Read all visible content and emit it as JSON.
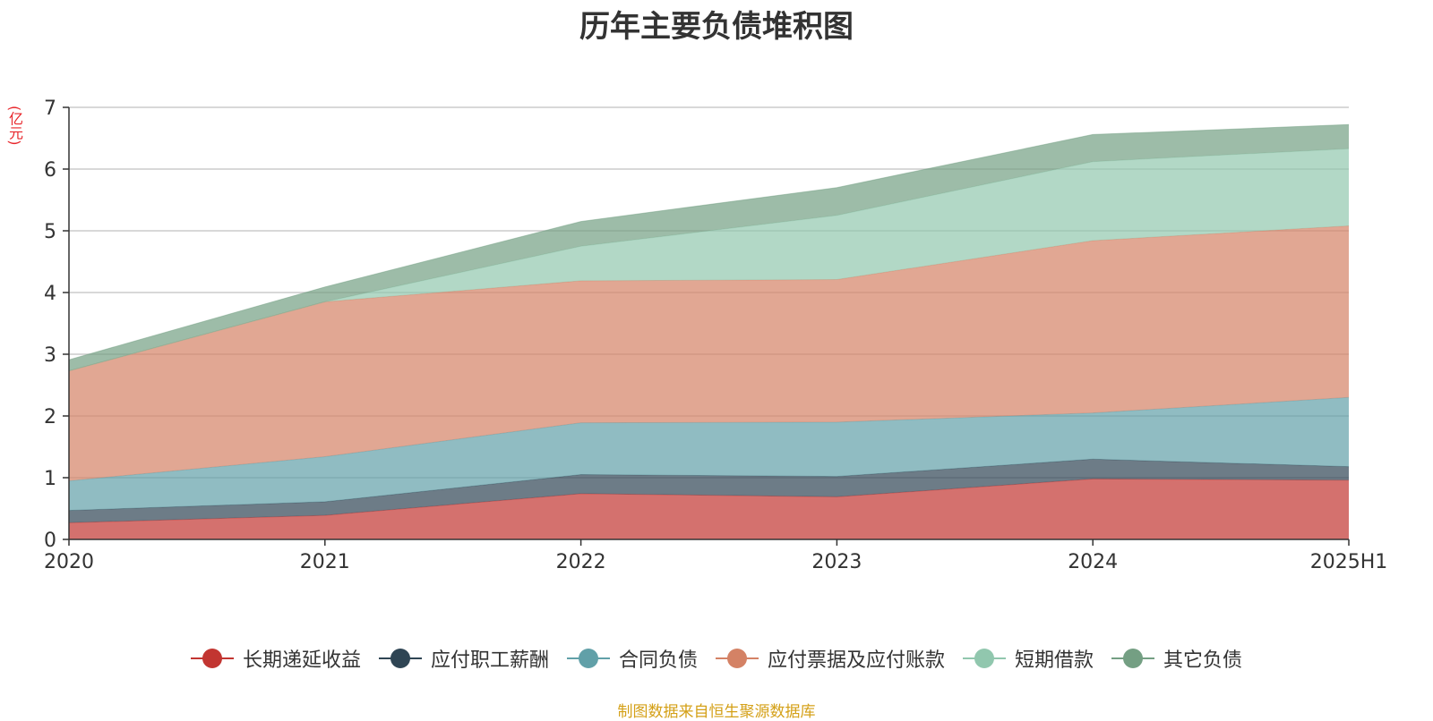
{
  "chart_data": {
    "type": "area",
    "stacked": true,
    "title": "历年主要负债堆积图",
    "ylabel": "(亿元)",
    "xlabel": "",
    "x": [
      "2020",
      "2021",
      "2022",
      "2023",
      "2024",
      "2025H1"
    ],
    "yticks": [
      "0",
      "1",
      "2",
      "3",
      "4",
      "5",
      "6",
      "7"
    ],
    "ylim": [
      0,
      7
    ],
    "grid": true,
    "legend_position": "bottom",
    "series": [
      {
        "name": "长期递延收益",
        "color": "#c23531",
        "values": [
          0.27,
          0.39,
          0.74,
          0.69,
          0.98,
          0.96
        ]
      },
      {
        "name": "应付职工薪酬",
        "color": "#2f4554",
        "values": [
          0.2,
          0.22,
          0.31,
          0.33,
          0.32,
          0.22
        ]
      },
      {
        "name": "合同负债",
        "color": "#61a0a8",
        "values": [
          0.48,
          0.73,
          0.84,
          0.88,
          0.75,
          1.12
        ]
      },
      {
        "name": "应付票据及应付账款",
        "color": "#d48265",
        "values": [
          1.78,
          2.51,
          2.3,
          2.31,
          2.79,
          2.78
        ]
      },
      {
        "name": "短期借款",
        "color": "#91c7ae",
        "values": [
          0.0,
          0.0,
          0.56,
          1.04,
          1.28,
          1.25
        ]
      },
      {
        "name": "其它负债",
        "color": "#749f83",
        "values": [
          0.18,
          0.24,
          0.4,
          0.45,
          0.44,
          0.39
        ]
      }
    ]
  },
  "source_note": "制图数据来自恒生聚源数据库"
}
